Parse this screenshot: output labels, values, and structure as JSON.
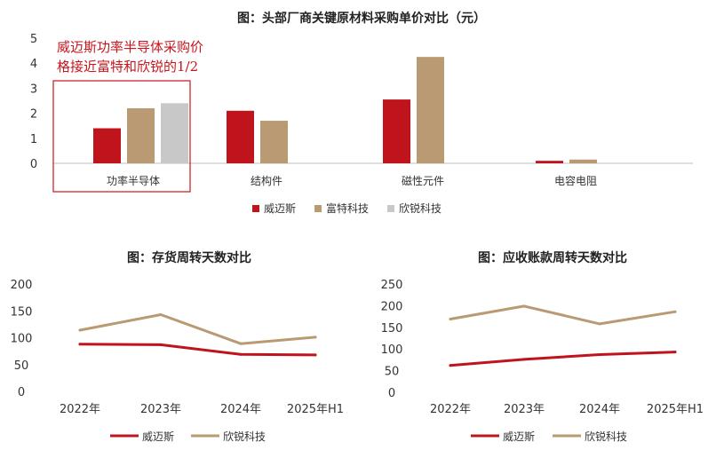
{
  "colors": {
    "weimais": "#c0141d",
    "futeng": "#b99a72",
    "xinrui": "#c8c8c8",
    "axis": "#bfbfbf",
    "annotation_border": "#c8161d"
  },
  "chart_data": [
    {
      "type": "bar",
      "title": "图：头部厂商关键原材料采购单价对比（元）",
      "categories": [
        "功率半导体",
        "结构件",
        "磁性元件",
        "电容电阻"
      ],
      "series": [
        {
          "name": "威迈斯",
          "values": [
            1.4,
            2.1,
            2.55,
            0.1
          ],
          "color": "#c0141d"
        },
        {
          "name": "富特科技",
          "values": [
            2.2,
            1.7,
            4.25,
            0.15
          ],
          "color": "#b99a72"
        },
        {
          "name": "欣锐科技",
          "values": [
            2.4,
            null,
            null,
            null
          ],
          "color": "#c8c8c8"
        }
      ],
      "yticks": [
        "0",
        "1",
        "2",
        "3",
        "4",
        "5"
      ],
      "ylim": [
        0,
        5
      ],
      "annotation": [
        "威迈斯功率半导体采购价",
        "格接近富特和欣锐的1/2"
      ],
      "legend_position": "bottom"
    },
    {
      "type": "line",
      "title": "图：存货周转天数对比",
      "categories": [
        "2022年",
        "2023年",
        "2024年",
        "2025年H1"
      ],
      "series": [
        {
          "name": "威迈斯",
          "values": [
            88,
            87,
            69,
            68
          ],
          "color": "#c0141d"
        },
        {
          "name": "欣锐科技",
          "values": [
            114,
            143,
            89,
            101
          ],
          "color": "#b99a72"
        }
      ],
      "yticks": [
        "0",
        "50",
        "100",
        "150",
        "200"
      ],
      "ylim": [
        0,
        200
      ],
      "legend_position": "bottom"
    },
    {
      "type": "line",
      "title": "图：应收账款周转天数对比",
      "categories": [
        "2022年",
        "2023年",
        "2024年",
        "2025年H1"
      ],
      "series": [
        {
          "name": "威迈斯",
          "values": [
            62,
            76,
            87,
            93
          ],
          "color": "#c0141d"
        },
        {
          "name": "欣锐科技",
          "values": [
            169,
            199,
            158,
            186
          ],
          "color": "#b99a72"
        }
      ],
      "yticks": [
        "0",
        "50",
        "100",
        "150",
        "200",
        "250"
      ],
      "ylim": [
        0,
        250
      ],
      "legend_position": "bottom"
    }
  ]
}
